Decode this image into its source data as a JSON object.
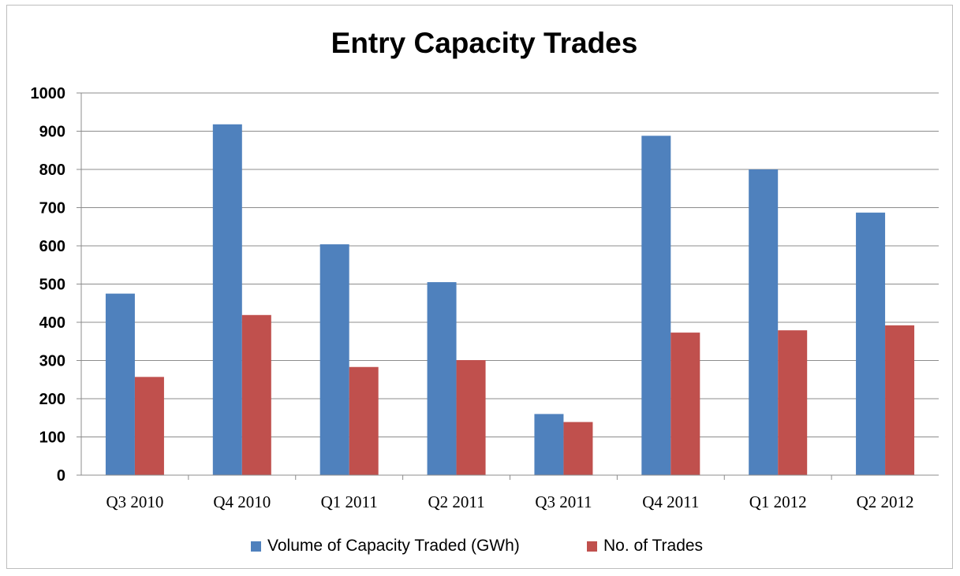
{
  "chart_data": {
    "type": "bar",
    "title": "Entry Capacity Trades",
    "xlabel": "",
    "ylabel": "",
    "categories": [
      "Q3 2010",
      "Q4 2010",
      "Q1 2011",
      "Q2 2011",
      "Q3 2011",
      "Q4 2011",
      "Q1 2012",
      "Q2 2012"
    ],
    "series": [
      {
        "name": "Volume of Capacity Traded (GWh)",
        "color": "#4f81bd",
        "values": [
          475,
          918,
          604,
          505,
          160,
          888,
          800,
          687
        ]
      },
      {
        "name": "No. of Trades",
        "color": "#c0504d",
        "values": [
          257,
          419,
          283,
          301,
          139,
          373,
          379,
          392
        ]
      }
    ],
    "ylim": [
      0,
      1000
    ],
    "yticks": [
      "0",
      "100",
      "200",
      "300",
      "400",
      "500",
      "600",
      "700",
      "800",
      "900",
      "1000"
    ],
    "grid": true,
    "legend_position": "bottom"
  }
}
